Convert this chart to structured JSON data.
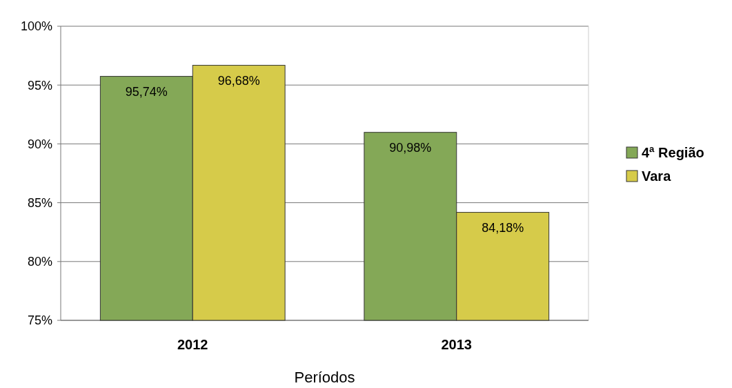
{
  "chart_data": {
    "type": "bar",
    "xlabel": "Períodos",
    "categories": [
      "2012",
      "2013"
    ],
    "series": [
      {
        "name": "4ª Região",
        "color": "#84a857",
        "values": [
          95.74,
          90.98
        ],
        "value_labels": [
          "95,74%",
          "90,98%"
        ]
      },
      {
        "name": "Vara",
        "color": "#d6cb4a",
        "values": [
          96.68,
          84.18
        ],
        "value_labels": [
          "96,68%",
          "84,18%"
        ]
      }
    ],
    "ylim": [
      75,
      100
    ],
    "yticks": [
      {
        "value": 75,
        "label": "75%"
      },
      {
        "value": 80,
        "label": "80%"
      },
      {
        "value": 85,
        "label": "85%"
      },
      {
        "value": 90,
        "label": "90%"
      },
      {
        "value": 95,
        "label": "95%"
      },
      {
        "value": 100,
        "label": "100%"
      }
    ],
    "grid": "y",
    "legend": "right"
  }
}
